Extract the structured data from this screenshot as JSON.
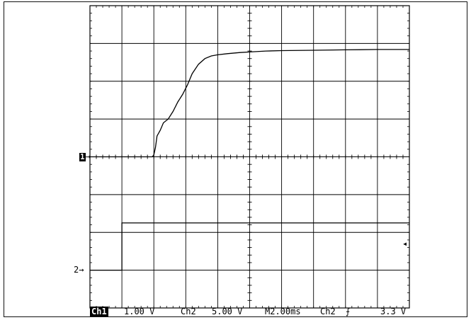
{
  "markers": {
    "ch1": "1",
    "ch1_arrow": "→",
    "ch2": "2→",
    "trigger_arrow": "◂"
  },
  "readout": {
    "ch1_label": "Ch1",
    "ch1_volts_div": "1.00 V",
    "ch2_label": "Ch2",
    "ch2_volts_div": "5.00 V",
    "timebase": "M2.00ms",
    "trigger_source": "Ch2",
    "trigger_slope": "⨍",
    "trigger_level": "3.3 V"
  },
  "chart_data": {
    "type": "line",
    "grid": true,
    "x_divisions": 10,
    "y_divisions": 8,
    "xlim": [
      0,
      10
    ],
    "ylim": [
      -4,
      4
    ],
    "series": [
      {
        "x": [
          0,
          1.95,
          2.0,
          2.05,
          2.1,
          2.2,
          2.3,
          2.45,
          2.6,
          2.75,
          2.9,
          3.05,
          3.2,
          3.4,
          3.6,
          3.8,
          4.0,
          4.3,
          4.7,
          5.1,
          5.5,
          6.0,
          7.0,
          8.0,
          9.0,
          10.0
        ],
        "y": [
          0,
          0,
          0.05,
          0.25,
          0.55,
          0.7,
          0.9,
          1.0,
          1.2,
          1.45,
          1.65,
          1.9,
          2.2,
          2.45,
          2.6,
          2.67,
          2.7,
          2.73,
          2.76,
          2.78,
          2.8,
          2.81,
          2.82,
          2.83,
          2.84,
          2.84
        ]
      },
      {
        "x": [
          0,
          1.0,
          1.0,
          10.0
        ],
        "y": [
          -3.0,
          -3.0,
          -1.75,
          -1.75
        ]
      }
    ]
  }
}
